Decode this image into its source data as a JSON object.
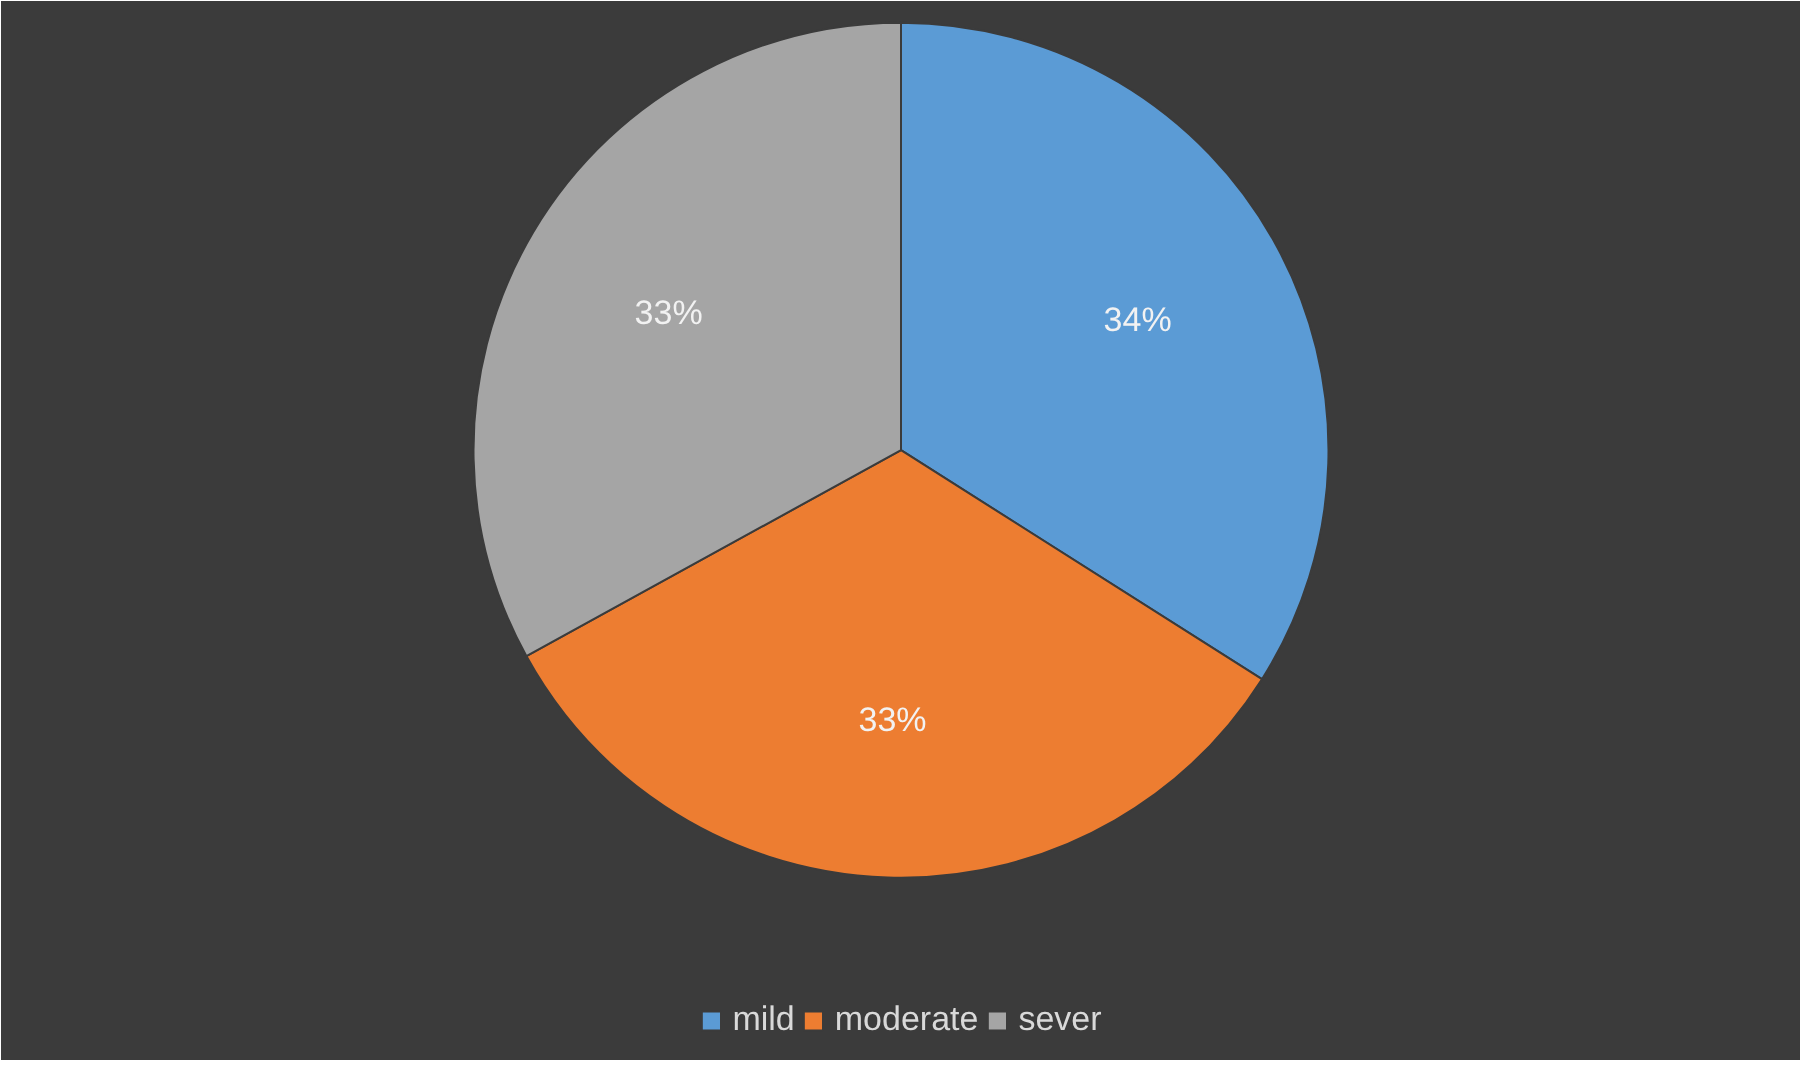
{
  "chart_data": {
    "type": "pie",
    "categories": [
      "mild",
      "moderate",
      "sever"
    ],
    "values": [
      34,
      33,
      33
    ],
    "colors": [
      "#5b9bd5",
      "#ed7d31",
      "#a5a5a5"
    ],
    "value_labels": [
      "34%",
      "33%",
      "33%"
    ],
    "legend": "bottom"
  }
}
